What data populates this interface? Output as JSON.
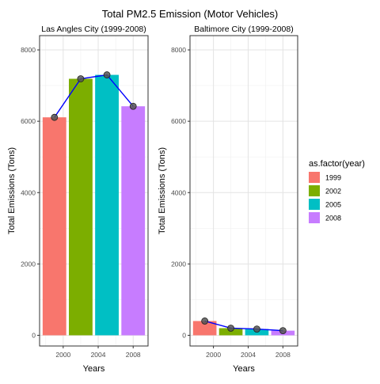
{
  "chart_data": {
    "type": "bar",
    "title": "Total PM2.5 Emission (Motor Vehicles)",
    "years": [
      1999,
      2002,
      2005,
      2008
    ],
    "xticks": [
      2000,
      2004,
      2008
    ],
    "xlim": [
      1997.3,
      2009.7
    ],
    "ylim": [
      -300,
      8400
    ],
    "yticks": [
      0,
      2000,
      4000,
      6000,
      8000
    ],
    "grid": true,
    "legend_position": "right",
    "line_color": "#0000ff",
    "point_color": "#555555",
    "panels": [
      {
        "title": "Las Angles City (1999-2008)",
        "xlabel": "Years",
        "ylabel": "Total Emissions (Tons)",
        "values": [
          6110,
          7190,
          7300,
          6420
        ]
      },
      {
        "title": "Baltimore City (1999-2008)",
        "xlabel": "Years",
        "ylabel": "Total Emissions (Tons)",
        "values": [
          400,
          200,
          175,
          130
        ]
      }
    ],
    "legend": {
      "title": "as.factor(year)",
      "entries": [
        {
          "label": "1999",
          "color": "#f8766d"
        },
        {
          "label": "2002",
          "color": "#7cae00"
        },
        {
          "label": "2005",
          "color": "#00bfc4"
        },
        {
          "label": "2008",
          "color": "#c77cff"
        }
      ]
    }
  }
}
